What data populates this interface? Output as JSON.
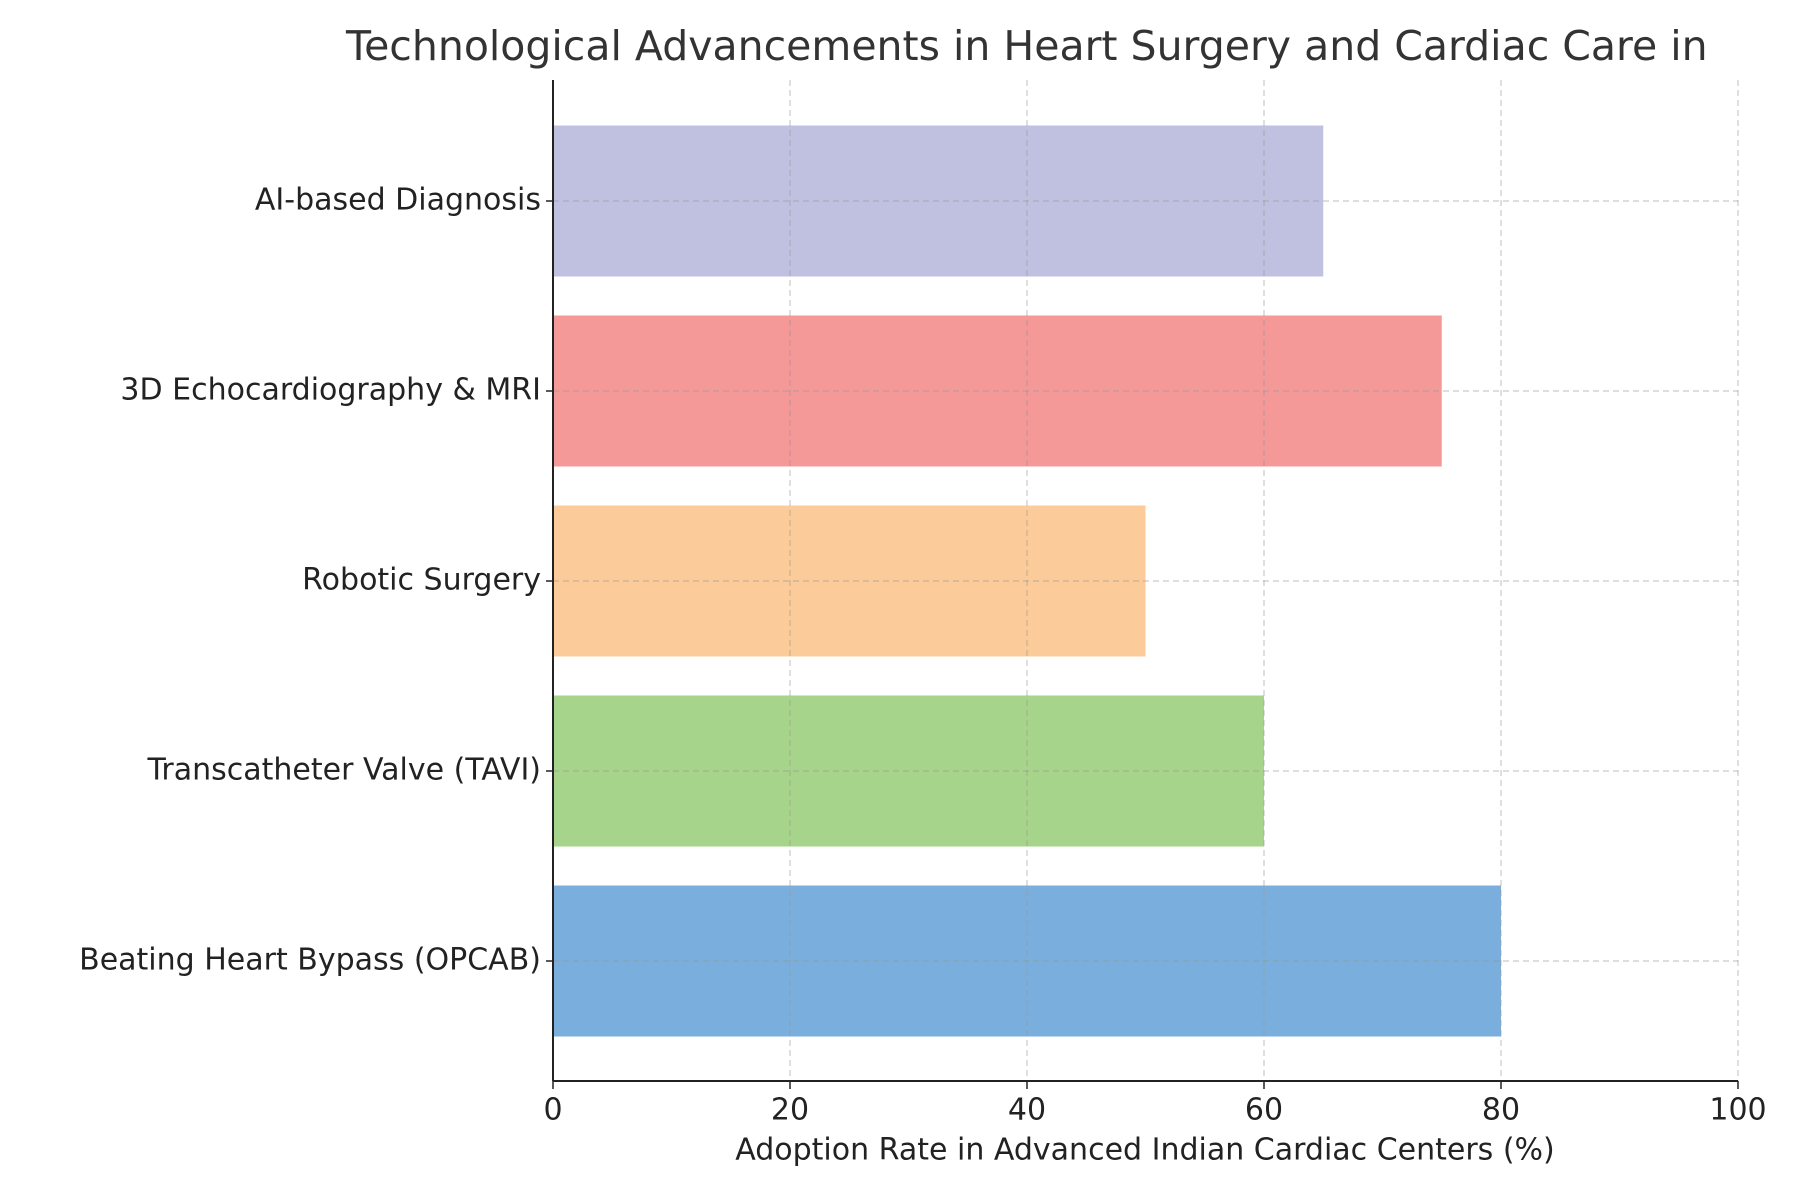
{
  "chart_data": {
    "type": "barh",
    "title": "Technological Advancements in Heart Surgery and Cardiac Care in",
    "xlabel": "Adoption Rate in Advanced Indian Cardiac Centers (%)",
    "categories": [
      "AI-based Diagnosis",
      "3D Echocardiography & MRI",
      "Robotic Surgery",
      "Transcatheter Valve (TAVI)",
      "Beating Heart Bypass (OPCAB)"
    ],
    "values": [
      65,
      75,
      50,
      60,
      80
    ],
    "colors": [
      "#c0c0e0",
      "#f59898",
      "#fccb9a",
      "#a6d48a",
      "#7aafdd"
    ],
    "xlim": [
      0,
      100
    ],
    "xticks": [
      0,
      20,
      40,
      60,
      80,
      100
    ],
    "grid": true
  }
}
